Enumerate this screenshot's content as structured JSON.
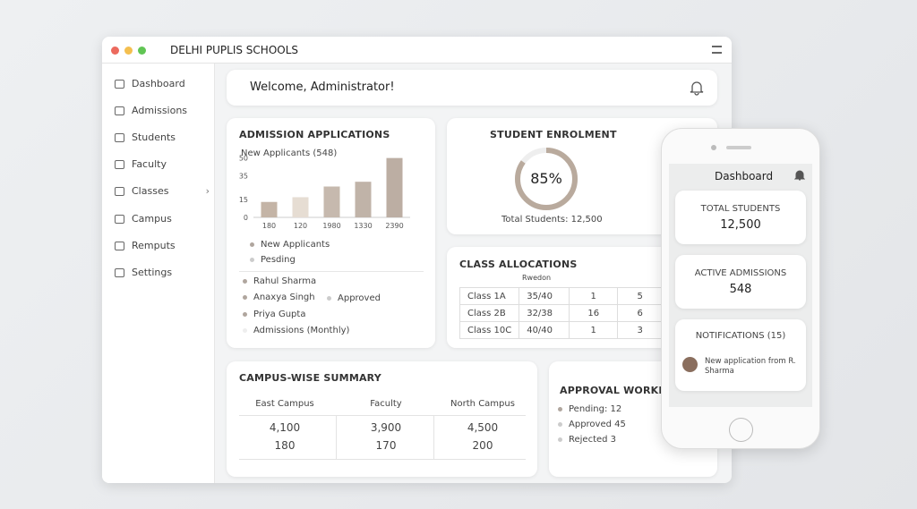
{
  "window": {
    "title": "DELHI PUPLIS SCHOOLS"
  },
  "sidebar": {
    "items": [
      "Dashboard",
      "Admissions",
      "Students",
      "Faculty",
      "Classes",
      "Campus",
      "Remputs",
      "Settings"
    ]
  },
  "welcome": "Welcome, Administrator!",
  "admissions": {
    "title": "ADMISSION APPLICATIONS",
    "chart_data": {
      "type": "bar",
      "title": "New Applicants (548)",
      "categories": [
        "180",
        "120",
        "1980",
        "1330",
        "2390"
      ],
      "values": [
        13,
        17,
        26,
        30,
        50
      ],
      "colors": [
        "#c4b4a6",
        "#e6ddd3",
        "#c6b9ae",
        "#c0b3a8",
        "#bcae a3"
      ],
      "ylim": [
        0,
        55
      ],
      "yticks": [
        0,
        15,
        35,
        50
      ]
    },
    "legend": [
      "New Applicants",
      "Pesding"
    ],
    "list": [
      {
        "name": "Rahul Sharma"
      },
      {
        "name": "Anaxya Singh",
        "status": "Approved"
      },
      {
        "name": "Priya Gupta"
      },
      {
        "name": "Admissions (Monthly)"
      }
    ]
  },
  "enrolment": {
    "title": "STUDENT ENROLMENT",
    "value": 85,
    "value_label": "85%",
    "total": "Total Students: 12,500"
  },
  "classes": {
    "title": "CLASS ALLOCATIONS",
    "header": "Rwedon",
    "rows": [
      [
        "Class 1A",
        "35/40",
        "1",
        "5"
      ],
      [
        "Class 2B",
        "32/38",
        "16",
        "6"
      ],
      [
        "Class 10C",
        "40/40",
        "1",
        "3"
      ]
    ]
  },
  "campus": {
    "title": "CAMPUS-WISE SUMMARY",
    "headers": [
      "East Campus",
      "Faculty",
      "North Campus"
    ],
    "rows": [
      [
        "4,100",
        "3,900",
        "4,500"
      ],
      [
        "180",
        "170",
        "200"
      ]
    ]
  },
  "approval": {
    "title": "APPROVAL WORKFLOW",
    "items": [
      "Pending: 12",
      "Approved 45",
      "Rejected 3"
    ]
  },
  "phone": {
    "title": "Dashboard",
    "cards": [
      {
        "label": "TOTAL STUDENTS",
        "value": "12,500"
      },
      {
        "label": "ACTIVE ADMISSIONS",
        "value": "548"
      }
    ],
    "notifications": {
      "title": "NOTIFICATIONS (15)",
      "items": [
        "New application from R. Sharma"
      ]
    }
  }
}
